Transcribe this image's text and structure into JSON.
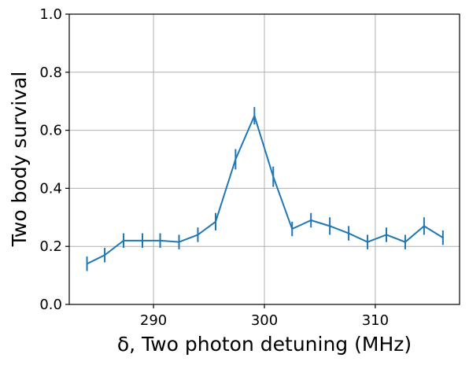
{
  "chart_data": {
    "type": "line",
    "title": "",
    "xlabel": "δ, Two photon detuning (MHz)",
    "ylabel": "Two body survival",
    "xlim": [
      282.4,
      317.6
    ],
    "ylim": [
      0.0,
      1.0
    ],
    "grid": true,
    "x_ticks": [
      290,
      300,
      310
    ],
    "y_ticks": [
      0.0,
      0.2,
      0.4,
      0.6,
      0.8,
      1.0
    ],
    "x_tick_labels": [
      "290",
      "300",
      "310"
    ],
    "y_tick_labels": [
      "0.0",
      "0.2",
      "0.4",
      "0.6",
      "0.8",
      "1.0"
    ],
    "color": "#1f77b4",
    "series": [
      {
        "x": [
          284.0,
          285.6,
          287.3,
          289.0,
          290.6,
          292.3,
          294.0,
          295.6,
          297.4,
          299.1,
          300.8,
          302.5,
          304.2,
          305.9,
          307.6,
          309.3,
          311.0,
          312.7,
          314.4,
          316.1
        ],
        "y": [
          0.14,
          0.17,
          0.22,
          0.22,
          0.22,
          0.215,
          0.24,
          0.285,
          0.5,
          0.65,
          0.44,
          0.26,
          0.29,
          0.27,
          0.245,
          0.215,
          0.24,
          0.215,
          0.27,
          0.23
        ],
        "yerr": [
          0.025,
          0.025,
          0.025,
          0.025,
          0.025,
          0.025,
          0.025,
          0.03,
          0.035,
          0.03,
          0.035,
          0.025,
          0.025,
          0.03,
          0.025,
          0.025,
          0.025,
          0.025,
          0.03,
          0.025
        ]
      }
    ]
  }
}
